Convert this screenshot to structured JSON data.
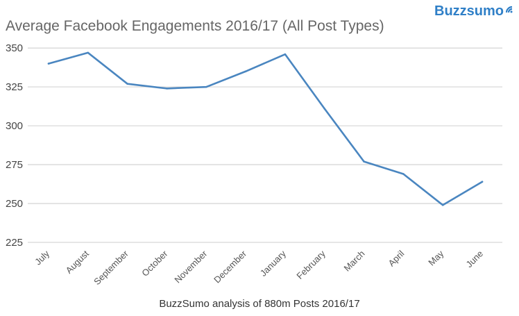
{
  "chart_data": {
    "type": "line",
    "title": "Average Facebook Engagements 2016/17 (All Post Types)",
    "brand": "Buzzsumo",
    "source_note": "BuzzSumo analysis of 880m Posts 2016/17",
    "categories": [
      "July",
      "August",
      "September",
      "October",
      "November",
      "December",
      "January",
      "February",
      "March",
      "April",
      "May",
      "June"
    ],
    "series": [
      {
        "values": [
          340,
          347,
          327,
          324,
          325,
          335,
          346,
          311,
          277,
          269,
          249,
          264
        ]
      }
    ],
    "y_ticks": [
      225,
      250,
      275,
      300,
      325,
      350
    ],
    "ylim": [
      225,
      355
    ],
    "grid": true,
    "legend": "none",
    "colors": {
      "line": "#4a86c0",
      "brand": "#2f7fc7",
      "grid": "#d8d8d8"
    },
    "icons": {
      "brand_icon": "wifi-signal-icon"
    }
  }
}
